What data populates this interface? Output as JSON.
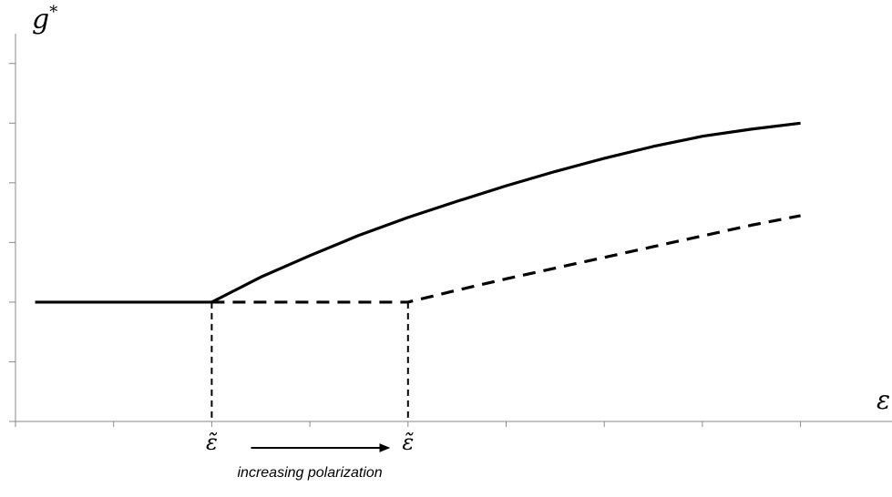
{
  "chart_data": {
    "type": "line",
    "title": "",
    "ylabel": "g",
    "ylabel_superscript": "*",
    "xlabel": "ε",
    "grid": false,
    "legend": "none",
    "xlim": [
      -2,
      8
    ],
    "ylim": [
      0,
      6.5
    ],
    "x_ticks": [
      -2,
      -1,
      0,
      1,
      2,
      3,
      4,
      5,
      6,
      7,
      8
    ],
    "y_ticks": [
      0,
      1,
      2,
      3,
      4,
      5,
      6
    ],
    "series": [
      {
        "style": "solid",
        "color": "#000000",
        "x": [
          -1.8,
          -1,
          0,
          0.5,
          1,
          1.5,
          2,
          2.5,
          3,
          3.5,
          4,
          4.5,
          5,
          5.5,
          6
        ],
        "y": [
          2.0,
          2.0,
          2.0,
          2.42,
          2.78,
          3.12,
          3.42,
          3.69,
          3.95,
          4.19,
          4.41,
          4.61,
          4.78,
          4.9,
          5.0
        ]
      },
      {
        "style": "dashed",
        "color": "#000000",
        "x": [
          0,
          1,
          2,
          2.5,
          3,
          3.5,
          4,
          4.5,
          5,
          5.5,
          6
        ],
        "y": [
          2.0,
          2.0,
          2.0,
          2.2,
          2.39,
          2.57,
          2.75,
          2.93,
          3.11,
          3.29,
          3.45
        ]
      }
    ],
    "vertical_markers": [
      {
        "x": 0,
        "y_top": 2.0,
        "style": "dashed",
        "label": "ε̃"
      },
      {
        "x": 2,
        "y_top": 2.0,
        "style": "dashed",
        "label": "ε̃"
      }
    ],
    "annotation": {
      "from_x": 0.4,
      "to_x": 1.8,
      "text": "increasing polarization"
    }
  }
}
